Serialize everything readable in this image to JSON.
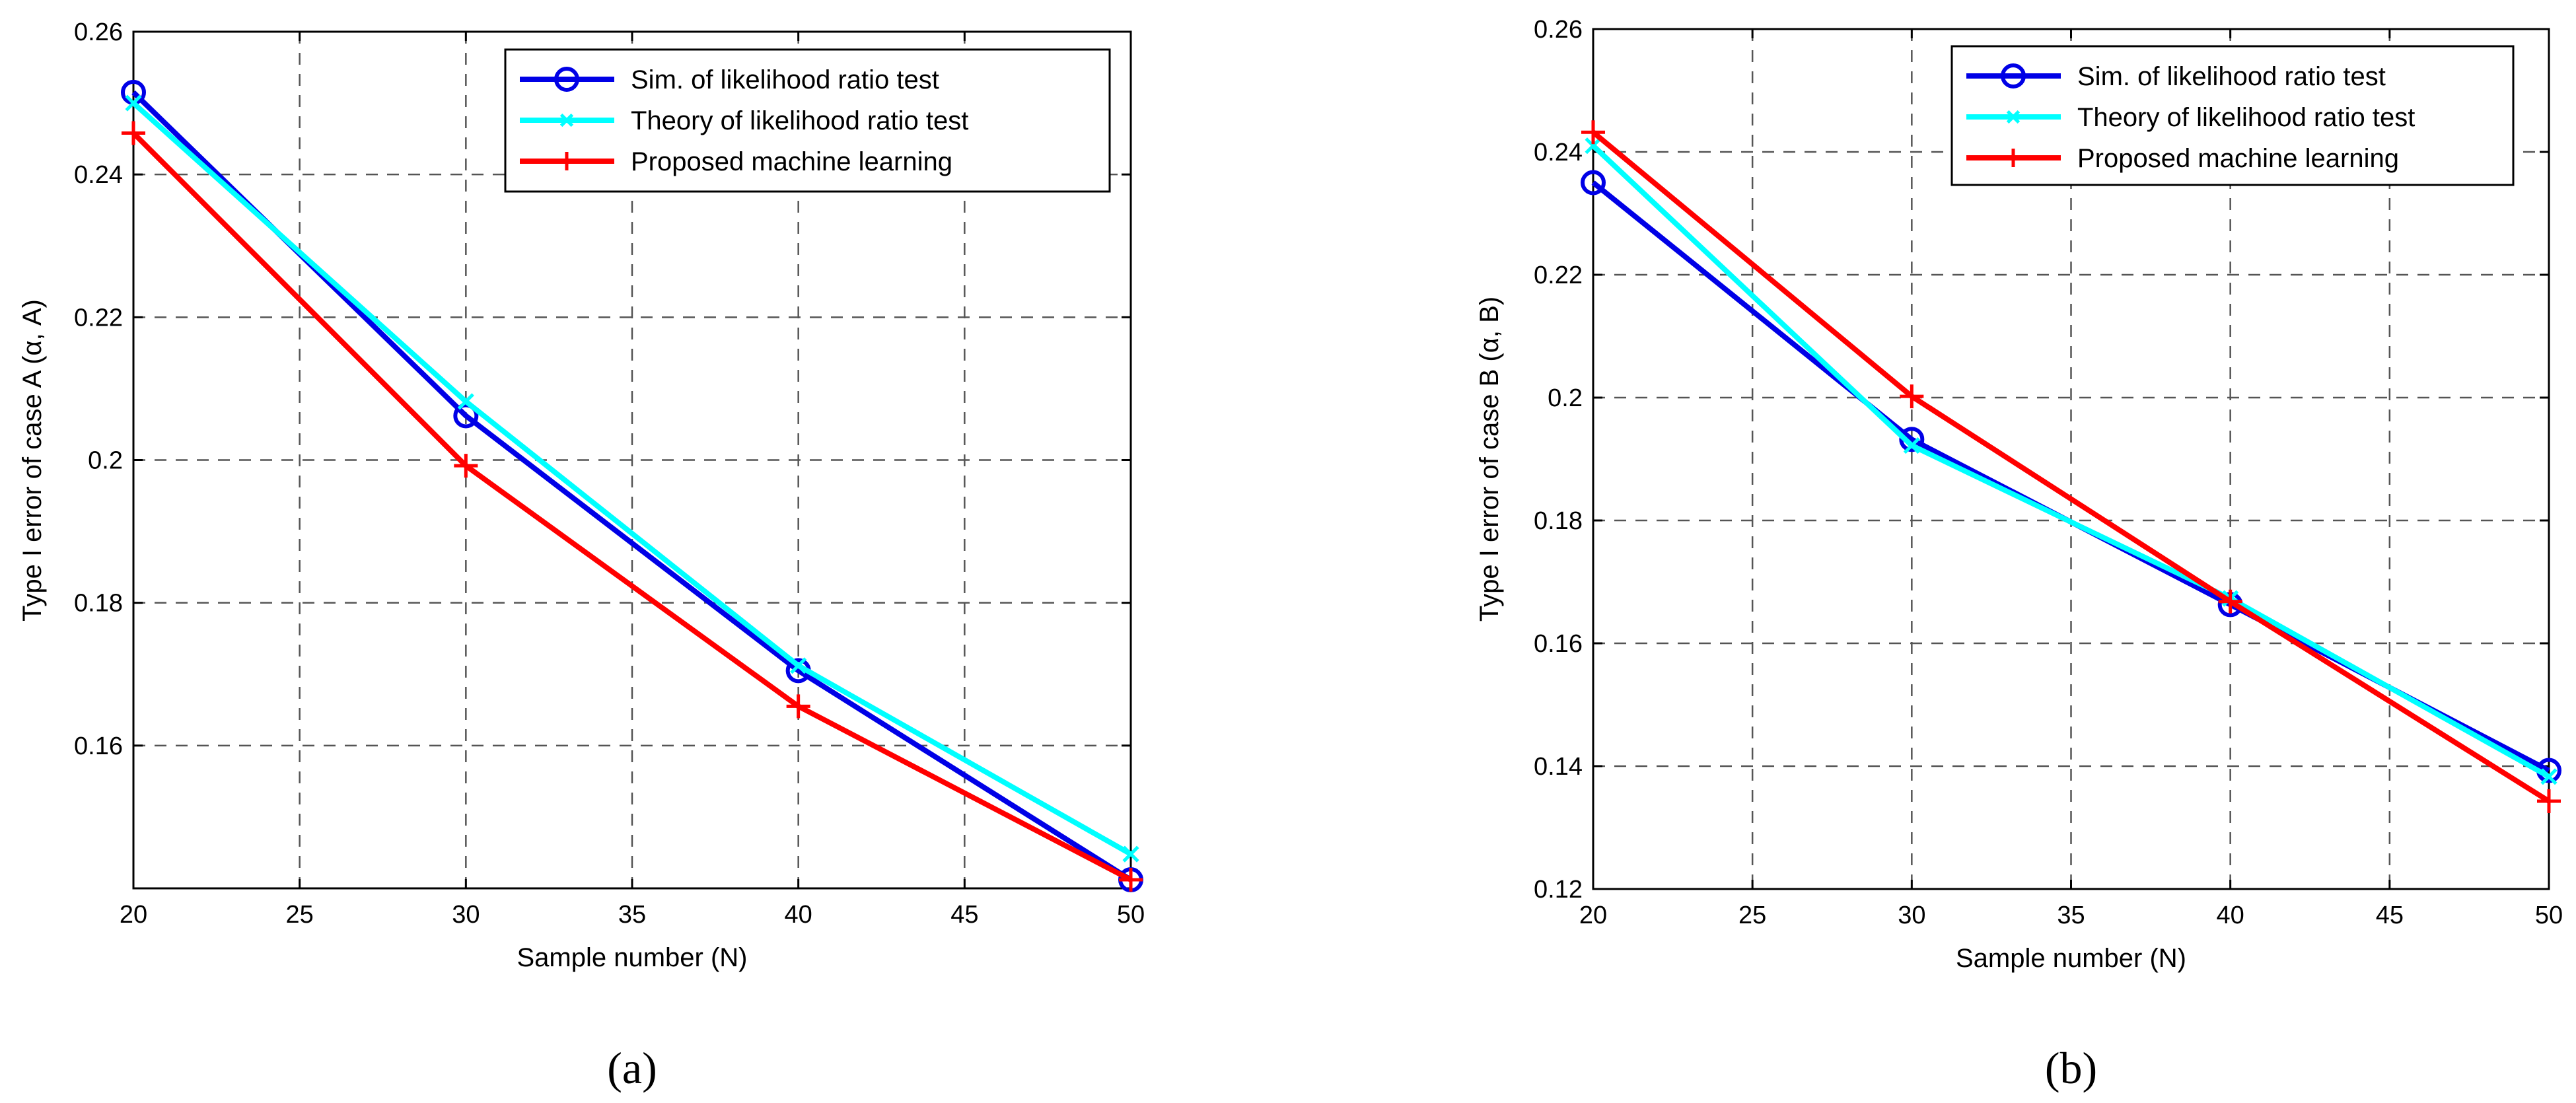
{
  "chart_data": [
    {
      "type": "line",
      "panel_label": "(a)",
      "panel_letter": "a",
      "xlabel": "Sample number (N)",
      "ylabel": "Type I error of case A (α, A)",
      "xlim": [
        20,
        50
      ],
      "ylim": [
        0.14,
        0.26
      ],
      "x_ticks": [
        20,
        25,
        30,
        35,
        40,
        45,
        50
      ],
      "y_ticks": [
        0.16,
        0.18,
        0.2,
        0.22,
        0.24,
        0.26
      ],
      "y_tick_labels": [
        "0.16",
        "0.18",
        "0.2",
        "0.22",
        "0.24",
        "0.26"
      ],
      "grid": true,
      "legend_position": "top-right",
      "x": [
        20,
        30,
        40,
        50
      ],
      "series": [
        {
          "name": "Sim. of likelihood ratio test",
          "color": "#0000e6",
          "marker": "circle",
          "values": [
            0.2515,
            0.2062,
            0.1705,
            0.1412
          ]
        },
        {
          "name": "Theory of likelihood ratio test",
          "color": "#00ffff",
          "marker": "x",
          "values": [
            0.25,
            0.2082,
            0.1712,
            0.1448
          ]
        },
        {
          "name": "Proposed machine learning",
          "color": "#ff0000",
          "marker": "plus",
          "values": [
            0.2458,
            0.1992,
            0.1655,
            0.1412
          ]
        }
      ]
    },
    {
      "type": "line",
      "panel_label": "(b)",
      "panel_letter": "b",
      "xlabel": "Sample number (N)",
      "ylabel": "Type I error of case B (α, B)",
      "xlim": [
        20,
        50
      ],
      "ylim": [
        0.12,
        0.26
      ],
      "x_ticks": [
        20,
        25,
        30,
        35,
        40,
        45,
        50
      ],
      "y_ticks": [
        0.12,
        0.14,
        0.16,
        0.18,
        0.2,
        0.22,
        0.24,
        0.26
      ],
      "y_tick_labels": [
        "0.12",
        "0.14",
        "0.16",
        "0.18",
        "0.2",
        "0.22",
        "0.24",
        "0.26"
      ],
      "grid": true,
      "legend_position": "top-right",
      "x": [
        20,
        30,
        40,
        50
      ],
      "series": [
        {
          "name": "Sim. of likelihood ratio test",
          "color": "#0000e6",
          "marker": "circle",
          "values": [
            0.235,
            0.1932,
            0.1663,
            0.1393
          ]
        },
        {
          "name": "Theory of likelihood ratio test",
          "color": "#00ffff",
          "marker": "x",
          "values": [
            0.241,
            0.1922,
            0.1673,
            0.1383
          ]
        },
        {
          "name": "Proposed machine learning",
          "color": "#ff0000",
          "marker": "plus",
          "values": [
            0.2432,
            0.2002,
            0.1668,
            0.1343
          ]
        }
      ]
    }
  ]
}
